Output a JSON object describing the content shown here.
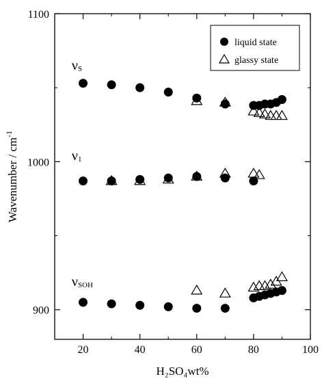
{
  "chart_data": {
    "type": "scatter",
    "xlabel": "H₂SO₄wt%",
    "ylabel": "Wavenumber / cm",
    "ylabel_exponent": "-1",
    "xlim": [
      10,
      100
    ],
    "ylim": [
      880,
      1100
    ],
    "xticks": [
      20,
      40,
      60,
      80,
      100
    ],
    "yticks": [
      900,
      1000,
      1100
    ],
    "grid": false,
    "legend_position": "top-right",
    "series": [
      {
        "name": "liquid state",
        "marker": "filled-circle",
        "color": "#000000",
        "points": [
          [
            20,
            1053
          ],
          [
            30,
            1052
          ],
          [
            40,
            1050
          ],
          [
            50,
            1047
          ],
          [
            60,
            1043
          ],
          [
            70,
            1039
          ],
          [
            80,
            1038
          ],
          [
            82,
            1038
          ],
          [
            84,
            1039
          ],
          [
            86,
            1039
          ],
          [
            88,
            1040
          ],
          [
            90,
            1042
          ],
          [
            20,
            987
          ],
          [
            30,
            987
          ],
          [
            40,
            988
          ],
          [
            50,
            989
          ],
          [
            60,
            990
          ],
          [
            70,
            989
          ],
          [
            80,
            987
          ],
          [
            20,
            905
          ],
          [
            30,
            904
          ],
          [
            40,
            903
          ],
          [
            50,
            902
          ],
          [
            60,
            901
          ],
          [
            70,
            901
          ],
          [
            80,
            908
          ],
          [
            82,
            909
          ],
          [
            84,
            910
          ],
          [
            86,
            911
          ],
          [
            88,
            912
          ],
          [
            90,
            913
          ]
        ]
      },
      {
        "name": "glassy state",
        "marker": "open-triangle",
        "color": "#000000",
        "points": [
          [
            60,
            1041
          ],
          [
            70,
            1040
          ],
          [
            80,
            1034
          ],
          [
            82,
            1033
          ],
          [
            84,
            1032
          ],
          [
            86,
            1031
          ],
          [
            88,
            1031
          ],
          [
            90,
            1031
          ],
          [
            30,
            987
          ],
          [
            40,
            987
          ],
          [
            50,
            988
          ],
          [
            60,
            990
          ],
          [
            70,
            992
          ],
          [
            80,
            992
          ],
          [
            82,
            991
          ],
          [
            60,
            913
          ],
          [
            70,
            911
          ],
          [
            80,
            915
          ],
          [
            82,
            916
          ],
          [
            84,
            916
          ],
          [
            86,
            917
          ],
          [
            88,
            919
          ],
          [
            90,
            922
          ]
        ]
      }
    ],
    "annotations": [
      {
        "id": "nu_s",
        "symbol": "ν",
        "sub": "S",
        "x": 16,
        "y": 1062
      },
      {
        "id": "nu_1",
        "symbol": "ν",
        "sub": "1",
        "x": 16,
        "y": 1001
      },
      {
        "id": "nu_soh",
        "symbol": "ν",
        "sub": "SOH",
        "x": 16,
        "y": 916
      }
    ]
  }
}
